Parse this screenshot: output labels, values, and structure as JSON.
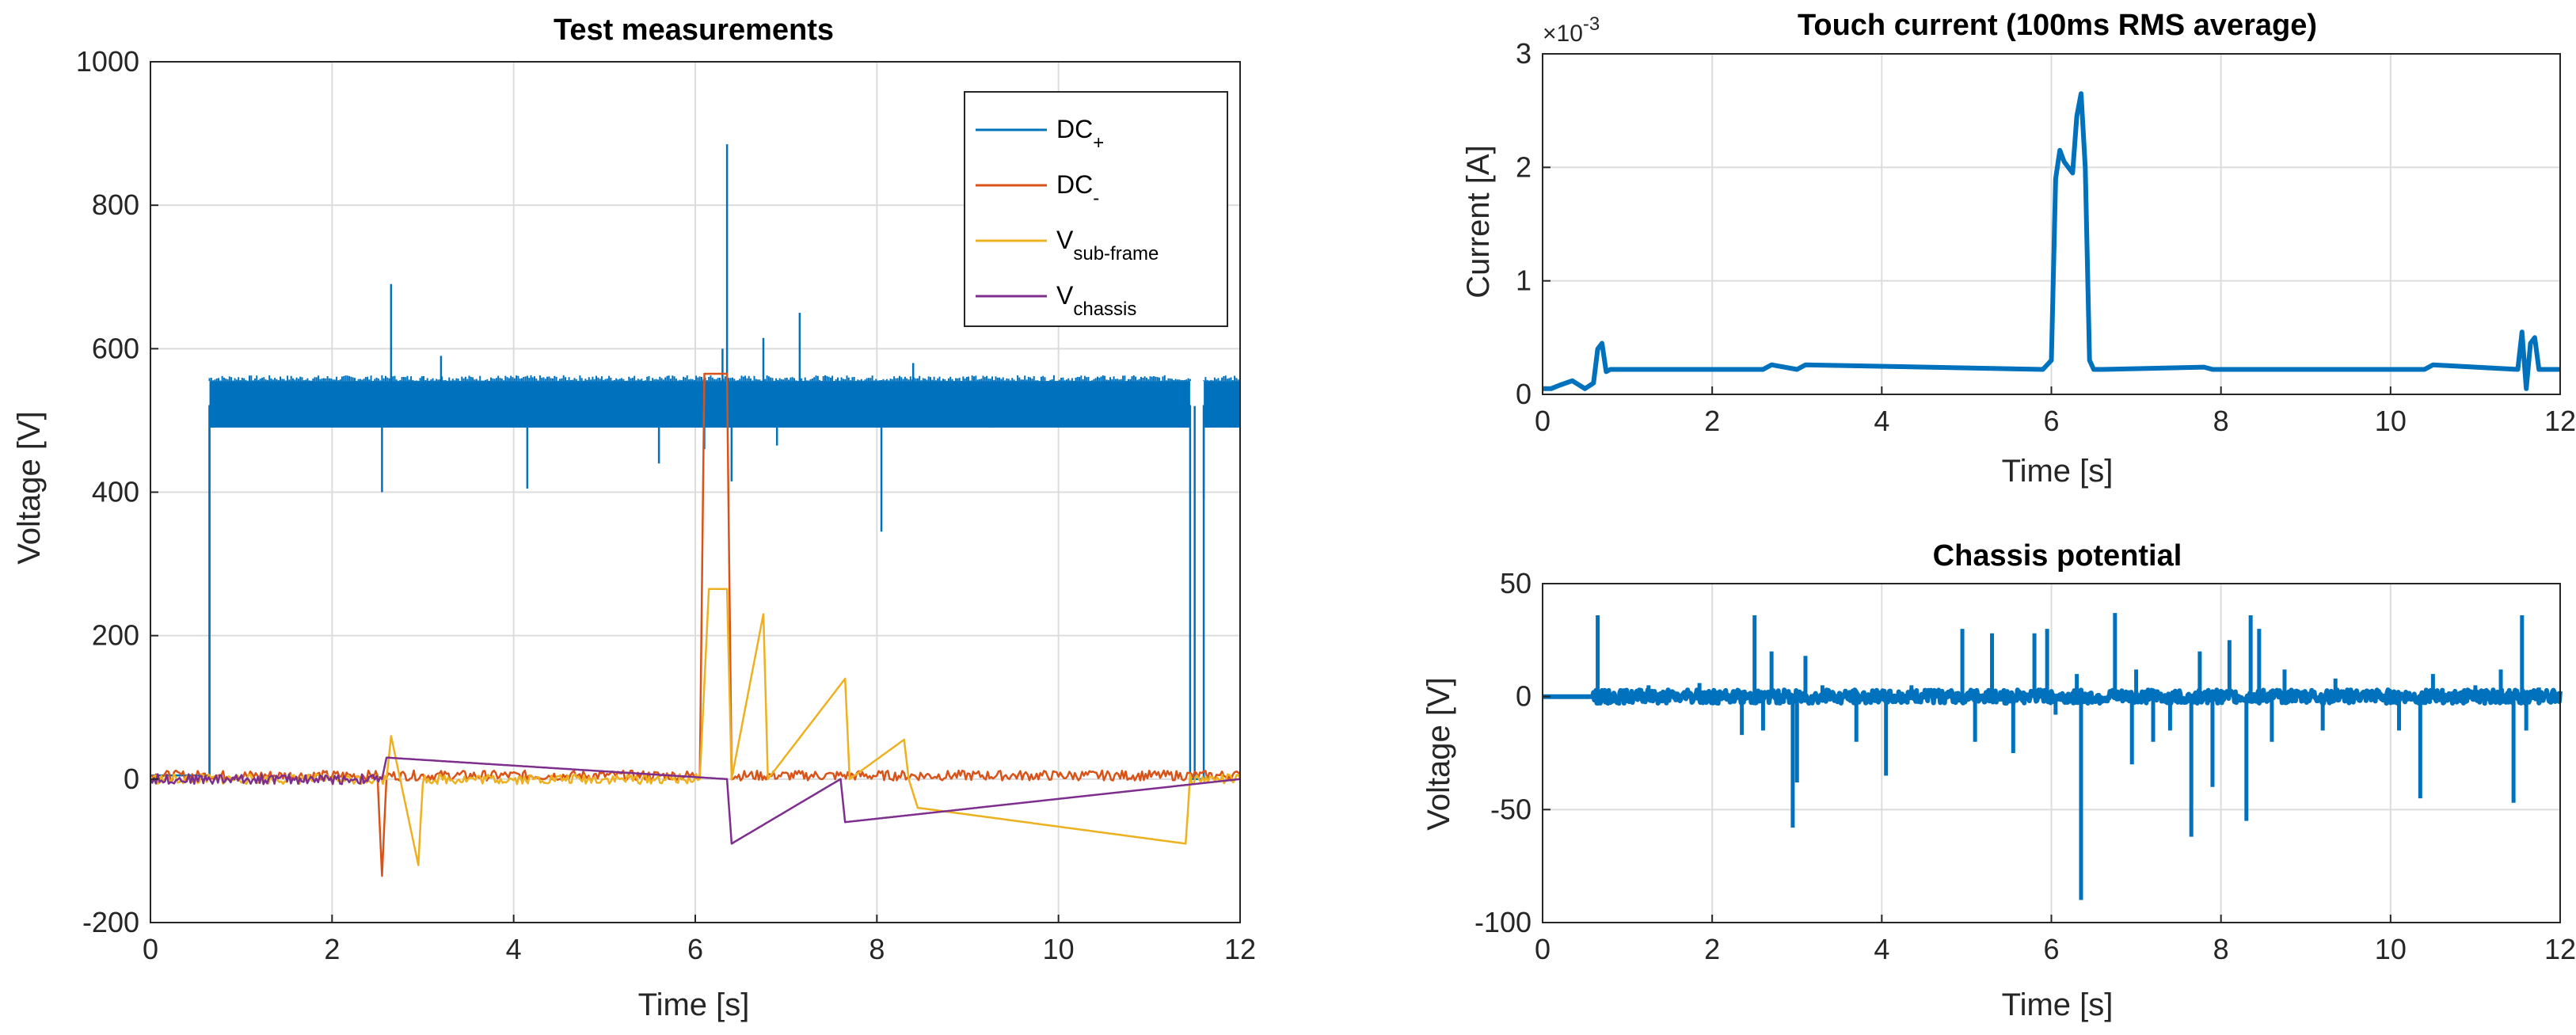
{
  "chart_data": [
    {
      "type": "line",
      "title": "Test measurements",
      "xlabel": "Time [s]",
      "ylabel": "Voltage [V]",
      "xlim": [
        0,
        12
      ],
      "ylim": [
        -200,
        1000
      ],
      "xticks": [
        "0",
        "2",
        "4",
        "6",
        "8",
        "10",
        "12"
      ],
      "yticks": [
        "-200",
        "0",
        "200",
        "400",
        "600",
        "800",
        "1000"
      ],
      "grid": true,
      "legend_position": "top-right",
      "series": [
        {
          "name": "DC+",
          "legend_main": "DC",
          "legend_sub": "+",
          "color": "#0072BD",
          "x": [
            0,
            0.65,
            0.65,
            11.45,
            11.45,
            11.6,
            11.6,
            12
          ],
          "band": [
            490,
            555
          ],
          "spikes": [
            [
              0.65,
              0
            ],
            [
              2.55,
              400
            ],
            [
              2.65,
              690
            ],
            [
              3.2,
              590
            ],
            [
              4.15,
              405
            ],
            [
              5.6,
              440
            ],
            [
              6.1,
              460
            ],
            [
              6.3,
              600
            ],
            [
              6.35,
              885
            ],
            [
              6.4,
              415
            ],
            [
              6.75,
              615
            ],
            [
              6.9,
              465
            ],
            [
              7.15,
              650
            ],
            [
              8.05,
              345
            ],
            [
              8.4,
              580
            ],
            [
              9.25,
              490
            ],
            [
              11.5,
              0
            ],
            [
              11.6,
              390
            ]
          ],
          "y": [
            5,
            5,
            520,
            520,
            0,
            0,
            520,
            520
          ]
        },
        {
          "name": "DC-",
          "legend_main": "DC",
          "legend_sub": "-",
          "color": "#D95319",
          "x": [
            0,
            2.5,
            2.55,
            2.6,
            6.05,
            6.1,
            6.15,
            6.35,
            6.4,
            12
          ],
          "y": [
            5,
            5,
            -135,
            5,
            5,
            565,
            565,
            565,
            5,
            5
          ]
        },
        {
          "name": "Vsub-frame",
          "legend_main": "V",
          "legend_sub": "sub-frame",
          "color": "#EDB120",
          "x": [
            0,
            2.6,
            2.65,
            2.95,
            3.0,
            6.05,
            6.15,
            6.35,
            6.4,
            6.75,
            6.8,
            7.65,
            7.7,
            8.3,
            8.35,
            8.45,
            11.4,
            11.45,
            12
          ],
          "y": [
            0,
            0,
            60,
            -120,
            0,
            0,
            265,
            265,
            0,
            230,
            0,
            140,
            0,
            55,
            0,
            -40,
            -90,
            0,
            0
          ]
        },
        {
          "name": "Vchassis",
          "legend_main": "V",
          "legend_sub": "chassis",
          "color": "#7E2F8E",
          "x": [
            0,
            2.55,
            2.6,
            6.35,
            6.4,
            7.6,
            7.65,
            12
          ],
          "y": [
            0,
            0,
            30,
            0,
            -90,
            0,
            -60,
            0
          ]
        }
      ]
    },
    {
      "type": "line",
      "title": "Touch current (100ms RMS average)",
      "xlabel": "Time [s]",
      "ylabel": "Current [A]",
      "y_exponent_label": "×10",
      "y_exponent_value": "-3",
      "xlim": [
        0,
        12
      ],
      "ylim": [
        0,
        3
      ],
      "xticks": [
        "0",
        "2",
        "4",
        "6",
        "8",
        "10",
        "12"
      ],
      "yticks": [
        "0",
        "1",
        "2",
        "3"
      ],
      "grid": true,
      "series": [
        {
          "color": "#0072BD",
          "x": [
            0,
            0.1,
            0.2,
            0.35,
            0.5,
            0.6,
            0.65,
            0.7,
            0.75,
            0.8,
            2.6,
            2.7,
            3.0,
            3.1,
            5.9,
            6.0,
            6.05,
            6.1,
            6.15,
            6.25,
            6.3,
            6.35,
            6.4,
            6.45,
            6.5,
            6.6,
            7.8,
            7.9,
            10.4,
            10.5,
            11.5,
            11.55,
            11.6,
            11.65,
            11.7,
            11.75,
            11.8,
            12
          ],
          "y": [
            0.05,
            0.05,
            0.08,
            0.12,
            0.05,
            0.1,
            0.4,
            0.45,
            0.2,
            0.22,
            0.22,
            0.26,
            0.22,
            0.26,
            0.22,
            0.3,
            1.9,
            2.15,
            2.05,
            1.95,
            2.45,
            2.65,
            2.0,
            0.3,
            0.22,
            0.22,
            0.24,
            0.22,
            0.22,
            0.26,
            0.22,
            0.55,
            0.05,
            0.45,
            0.5,
            0.22,
            0.22,
            0.22
          ]
        }
      ]
    },
    {
      "type": "line",
      "title": "Chassis potential",
      "xlabel": "Time [s]",
      "ylabel": "Voltage [V]",
      "xlim": [
        0,
        12
      ],
      "ylim": [
        -100,
        50
      ],
      "xticks": [
        "0",
        "2",
        "4",
        "6",
        "8",
        "10",
        "12"
      ],
      "yticks": [
        "-100",
        "-50",
        "0",
        "50"
      ],
      "grid": true,
      "series": [
        {
          "color": "#0072BD",
          "base": 0,
          "noise": 3,
          "spikes": [
            [
              0.65,
              36
            ],
            [
              1.25,
              5
            ],
            [
              1.85,
              6
            ],
            [
              2.35,
              -17
            ],
            [
              2.5,
              36
            ],
            [
              2.6,
              -15
            ],
            [
              2.7,
              20
            ],
            [
              2.95,
              -58
            ],
            [
              3.0,
              -38
            ],
            [
              3.1,
              18
            ],
            [
              3.3,
              5
            ],
            [
              3.7,
              -20
            ],
            [
              4.05,
              -35
            ],
            [
              4.35,
              5
            ],
            [
              4.95,
              30
            ],
            [
              5.1,
              -20
            ],
            [
              5.3,
              28
            ],
            [
              5.55,
              -25
            ],
            [
              5.8,
              28
            ],
            [
              5.95,
              30
            ],
            [
              6.05,
              -8
            ],
            [
              6.3,
              10
            ],
            [
              6.35,
              -90
            ],
            [
              6.75,
              37
            ],
            [
              6.95,
              -30
            ],
            [
              7.0,
              12
            ],
            [
              7.2,
              -20
            ],
            [
              7.4,
              -15
            ],
            [
              7.65,
              -62
            ],
            [
              7.75,
              20
            ],
            [
              7.9,
              -40
            ],
            [
              8.1,
              25
            ],
            [
              8.3,
              -55
            ],
            [
              8.35,
              36
            ],
            [
              8.45,
              30
            ],
            [
              8.6,
              -20
            ],
            [
              8.75,
              12
            ],
            [
              9.2,
              -15
            ],
            [
              9.35,
              8
            ],
            [
              10.1,
              -15
            ],
            [
              10.35,
              -45
            ],
            [
              10.5,
              10
            ],
            [
              11.0,
              5
            ],
            [
              11.3,
              12
            ],
            [
              11.45,
              -47
            ],
            [
              11.55,
              36
            ],
            [
              11.6,
              -15
            ],
            [
              11.75,
              4
            ]
          ]
        }
      ]
    }
  ]
}
